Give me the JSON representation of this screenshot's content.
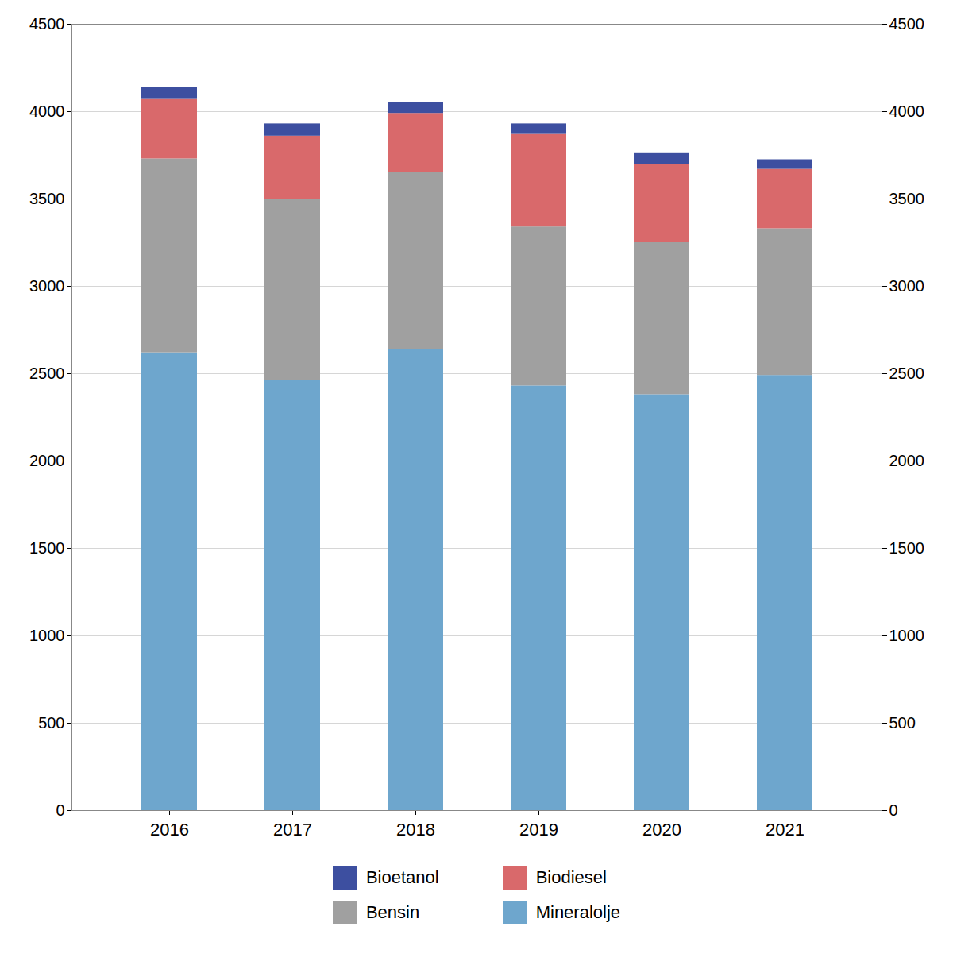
{
  "chart_data": {
    "type": "bar",
    "stacked": true,
    "categories": [
      "2016",
      "2017",
      "2018",
      "2019",
      "2020",
      "2021"
    ],
    "series": [
      {
        "name": "Mineralolje",
        "color": "#6ea6cd",
        "values": [
          2620,
          2460,
          2640,
          2430,
          2380,
          2490
        ]
      },
      {
        "name": "Bensin",
        "color": "#a0a0a0",
        "values": [
          1110,
          1040,
          1010,
          910,
          870,
          840
        ]
      },
      {
        "name": "Biodiesel",
        "color": "#d9696b",
        "values": [
          340,
          360,
          340,
          530,
          450,
          340
        ]
      },
      {
        "name": "Bioetanol",
        "color": "#3d4fa0",
        "values": [
          70,
          70,
          60,
          60,
          60,
          55
        ]
      }
    ],
    "ylim": [
      0,
      4500
    ],
    "yticks": [
      0,
      500,
      1000,
      1500,
      2000,
      2500,
      3000,
      3500,
      4000,
      4500
    ],
    "grid": true,
    "legend": "bottom"
  }
}
